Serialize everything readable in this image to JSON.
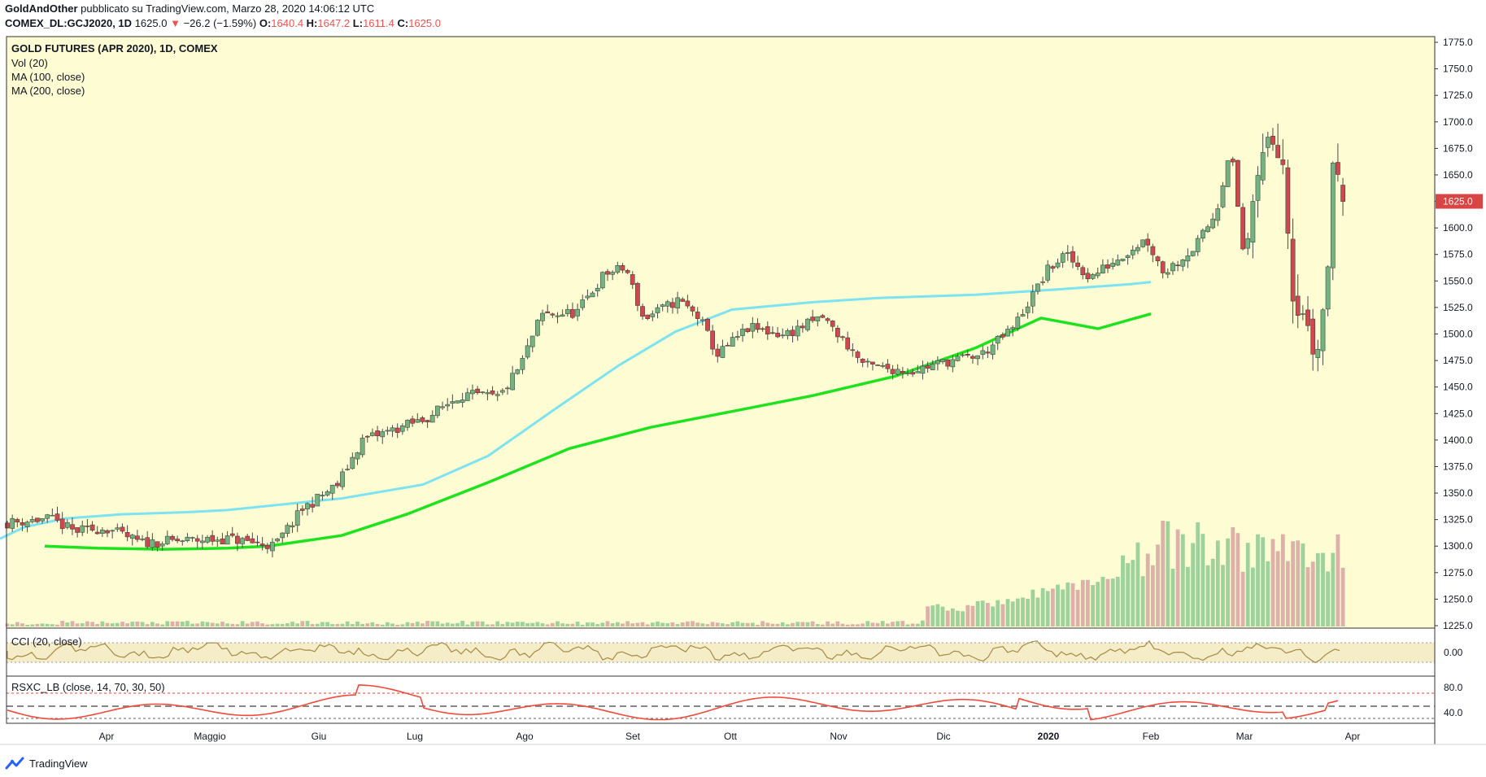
{
  "header": {
    "author": "GoldAndOther",
    "published": "pubblicato su TradingView.com, Marzo 28, 2020 14:06:12 UTC",
    "symbol": "COMEX_DL:GCJ2020, 1D",
    "last": "1625.0",
    "change_arrow": "▼",
    "change": "−26.2 (−1.59%)",
    "o_label": "O:",
    "o_val": "1640.4",
    "h_label": "H:",
    "h_val": "1647.2",
    "l_label": "L:",
    "l_val": "1611.4",
    "c_label": "C:",
    "c_val": "1625.0"
  },
  "legend": {
    "title": "GOLD FUTURES (APR 2020), 1D, COMEX",
    "vol": "Vol (20)",
    "ma100": "MA (100, close)",
    "ma200": "MA (200, close)"
  },
  "indicators": {
    "cci_label": "CCI (20, close)",
    "cci_tick": "0.00",
    "rsx_label": "RSXC_LB (close, 14, 70, 30, 50)",
    "rsx_ticks": [
      "80.0",
      "40.0"
    ]
  },
  "footer": {
    "brand": "TradingView"
  },
  "colors": {
    "bg": "#fefcd2",
    "up": "#74b27f",
    "down": "#d0484d",
    "wick": "#4a4a4a",
    "ma100": "#7de3f0",
    "ma200": "#1fe21f",
    "vol_up": "#9fd19c",
    "vol_down": "#ddb1aa",
    "cci": "#a58a46",
    "rsx": "#f24a3b",
    "price_badge": "#d84545"
  },
  "chart_data": {
    "type": "candlestick",
    "title": "GOLD FUTURES (APR 2020), 1D, COMEX",
    "ylim": [
      1225,
      1775
    ],
    "y_ticks": [
      "1775.0",
      "1750.0",
      "1725.0",
      "1700.0",
      "1675.0",
      "1650.0",
      "1625.0",
      "1600.0",
      "1575.0",
      "1550.0",
      "1525.0",
      "1500.0",
      "1475.0",
      "1450.0",
      "1425.0",
      "1400.0",
      "1375.0",
      "1350.0",
      "1325.0",
      "1300.0",
      "1275.0",
      "1250.0",
      "1225.0"
    ],
    "last_price": "1625.0",
    "x_ticks": [
      "Apr",
      "Maggio",
      "Giu",
      "Lug",
      "Ago",
      "Set",
      "Ott",
      "Nov",
      "Dic",
      "2020",
      "Feb",
      "Mar",
      "Apr"
    ],
    "price_keypoints": [
      [
        "2019-03-13",
        1322
      ],
      [
        "2019-03-25",
        1326
      ],
      [
        "2019-04-01",
        1314
      ],
      [
        "2019-04-10",
        1317
      ],
      [
        "2019-04-20",
        1303
      ],
      [
        "2019-05-01",
        1305
      ],
      [
        "2019-05-15",
        1307
      ],
      [
        "2019-05-28",
        1300
      ],
      [
        "2019-06-05",
        1335
      ],
      [
        "2019-06-15",
        1358
      ],
      [
        "2019-06-22",
        1400
      ],
      [
        "2019-07-01",
        1410
      ],
      [
        "2019-07-10",
        1420
      ],
      [
        "2019-07-20",
        1443
      ],
      [
        "2019-07-31",
        1440
      ],
      [
        "2019-08-06",
        1470
      ],
      [
        "2019-08-12",
        1518
      ],
      [
        "2019-08-22",
        1520
      ],
      [
        "2019-08-30",
        1557
      ],
      [
        "2019-09-05",
        1562
      ],
      [
        "2019-09-10",
        1514
      ],
      [
        "2019-09-20",
        1532
      ],
      [
        "2019-09-26",
        1515
      ],
      [
        "2019-10-01",
        1480
      ],
      [
        "2019-10-10",
        1506
      ],
      [
        "2019-10-20",
        1499
      ],
      [
        "2019-10-31",
        1516
      ],
      [
        "2019-11-05",
        1497
      ],
      [
        "2019-11-12",
        1470
      ],
      [
        "2019-11-25",
        1465
      ],
      [
        "2019-12-05",
        1474
      ],
      [
        "2019-12-15",
        1480
      ],
      [
        "2019-12-24",
        1505
      ],
      [
        "2020-01-03",
        1560
      ],
      [
        "2020-01-08",
        1575
      ],
      [
        "2020-01-15",
        1553
      ],
      [
        "2020-01-31",
        1590
      ],
      [
        "2020-02-05",
        1558
      ],
      [
        "2020-02-14",
        1582
      ],
      [
        "2020-02-20",
        1615
      ],
      [
        "2020-02-24",
        1678
      ],
      [
        "2020-02-28",
        1568
      ],
      [
        "2020-03-03",
        1655
      ],
      [
        "2020-03-06",
        1688
      ],
      [
        "2020-03-10",
        1661
      ],
      [
        "2020-03-13",
        1524
      ],
      [
        "2020-03-16",
        1520
      ],
      [
        "2020-03-19",
        1475
      ],
      [
        "2020-03-20",
        1487
      ],
      [
        "2020-03-23",
        1570
      ],
      [
        "2020-03-24",
        1662
      ],
      [
        "2020-03-26",
        1651
      ],
      [
        "2020-03-27",
        1625
      ]
    ],
    "ma100": [
      [
        0,
        1307
      ],
      [
        30,
        1318
      ],
      [
        80,
        1326
      ],
      [
        150,
        1330
      ],
      [
        230,
        1332
      ],
      [
        280,
        1334
      ],
      [
        330,
        1338
      ],
      [
        420,
        1345
      ],
      [
        520,
        1358
      ],
      [
        600,
        1385
      ],
      [
        680,
        1428
      ],
      [
        760,
        1470
      ],
      [
        830,
        1502
      ],
      [
        900,
        1523
      ],
      [
        1000,
        1530
      ],
      [
        1080,
        1534
      ],
      [
        1200,
        1537
      ],
      [
        1300,
        1542
      ],
      [
        1390,
        1547
      ],
      [
        1415,
        1549
      ]
    ],
    "ma200": [
      [
        55,
        1300
      ],
      [
        120,
        1298
      ],
      [
        200,
        1297
      ],
      [
        280,
        1298
      ],
      [
        330,
        1300
      ],
      [
        420,
        1310
      ],
      [
        500,
        1330
      ],
      [
        600,
        1360
      ],
      [
        700,
        1392
      ],
      [
        800,
        1412
      ],
      [
        900,
        1427
      ],
      [
        1000,
        1442
      ],
      [
        1100,
        1460
      ],
      [
        1200,
        1487
      ],
      [
        1280,
        1515
      ],
      [
        1350,
        1505
      ],
      [
        1415,
        1519
      ]
    ],
    "series": [
      {
        "name": "Vol (20)"
      },
      {
        "name": "MA (100, close)"
      },
      {
        "name": "MA (200, close)"
      }
    ]
  }
}
